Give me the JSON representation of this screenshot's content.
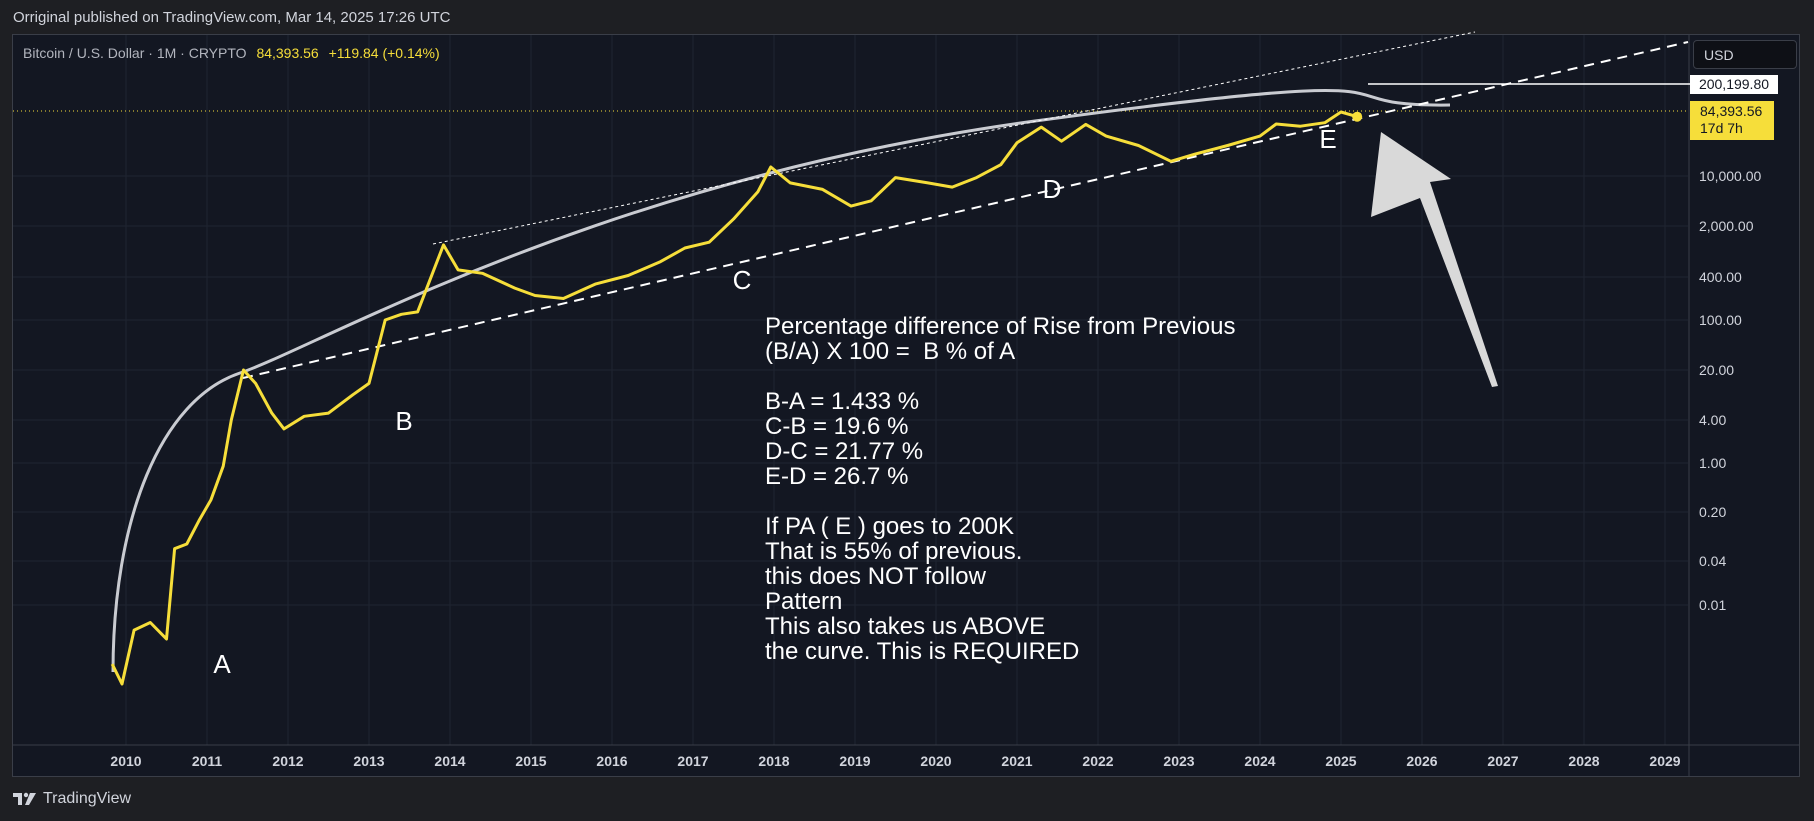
{
  "caption": "Orriginal published on TradingView.com, Mar 14, 2025 17:26 UTC",
  "symbol": {
    "name": "Bitcoin / U.S. Dollar · 1M · CRYPTO",
    "price": "84,393.56",
    "change": "+119.84 (+0.14%)"
  },
  "currency_button": "USD",
  "price_tag": {
    "price": "84,393.56",
    "countdown": "17d 7h"
  },
  "target_tag": "200,199.80",
  "annotation": "Percentage difference of Rise from Previous\n(B/A) X 100 =  B % of A\n\nB-A = 1.433 %\nC-B = 19.6 %\nD-C = 21.77 %\nE-D = 26.7 %\n\nIf PA ( E ) goes to 200K\nThat is 55% of previous.\nthis does NOT follow\nPattern\nThis also takes us ABOVE\nthe curve. This is REQUIRED",
  "brand": "TradingView",
  "colors": {
    "price_line": "#f6de3a",
    "curve": "#c9cbd1",
    "background": "#131722",
    "frame": "#1e1f23"
  },
  "chart_data": {
    "type": "line",
    "y_scale": "log",
    "y_tick_labels": [
      "10,000.00",
      "2,000.00",
      "400.00",
      "100.00",
      "20.00",
      "4.00",
      "1.00",
      "0.20",
      "0.04",
      "0.01"
    ],
    "x_tick_labels": [
      "2010",
      "2011",
      "2012",
      "2013",
      "2014",
      "2015",
      "2016",
      "2017",
      "2018",
      "2019",
      "2020",
      "2021",
      "2022",
      "2023",
      "2024",
      "2025",
      "2026",
      "2027",
      "2028",
      "2029"
    ],
    "point_labels": [
      "A",
      "B",
      "C",
      "D",
      "E"
    ],
    "grid": true,
    "series": [
      {
        "x": [
          2009.83,
          2009.95,
          2010.1,
          2010.3,
          2010.5,
          2010.6,
          2010.75,
          2010.9,
          2011.05,
          2011.2,
          2011.3,
          2011.45,
          2011.6,
          2011.8,
          2011.95,
          2012.2,
          2012.5,
          2012.8,
          2013.0,
          2013.2,
          2013.4,
          2013.6,
          2013.8,
          2013.92,
          2014.1,
          2014.4,
          2014.8,
          2015.05,
          2015.4,
          2015.8,
          2016.2,
          2016.6,
          2016.9,
          2017.2,
          2017.5,
          2017.8,
          2017.96,
          2018.2,
          2018.6,
          2018.95,
          2019.2,
          2019.5,
          2019.9,
          2020.2,
          2020.5,
          2020.8,
          2021.0,
          2021.3,
          2021.55,
          2021.85,
          2022.1,
          2022.5,
          2022.9,
          2023.2,
          2023.6,
          2024.0,
          2024.2,
          2024.5,
          2024.8,
          2025.0,
          2025.2
        ],
        "values": [
          0.003,
          0.002,
          0.006,
          0.007,
          0.005,
          0.06,
          0.07,
          0.15,
          0.3,
          0.9,
          4,
          20,
          13,
          5,
          3,
          4.5,
          5,
          9,
          13,
          100,
          120,
          130,
          500,
          1100,
          500,
          450,
          280,
          220,
          200,
          320,
          420,
          650,
          1000,
          1200,
          2500,
          6000,
          13800,
          8000,
          6500,
          3800,
          4500,
          9500,
          8000,
          7000,
          9500,
          15000,
          33000,
          58000,
          35000,
          64000,
          42000,
          30000,
          17000,
          22000,
          30000,
          42000,
          65000,
          60000,
          68000,
          100000,
          84393.56
        ]
      }
    ],
    "annotations": [
      "logarithmic growth curve",
      "upper dotted trendline",
      "lower dashed trendline",
      "horizontal target line 200,199.80",
      "large arrow pointing at point E"
    ]
  }
}
